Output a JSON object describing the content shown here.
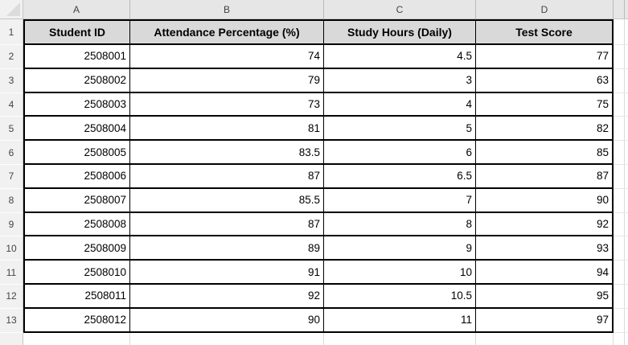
{
  "app": {
    "type": "spreadsheet-grid"
  },
  "grid": {
    "column_headers": [
      "A",
      "B",
      "C",
      "D"
    ],
    "row_numbers": [
      "1",
      "2",
      "3",
      "4",
      "5",
      "6",
      "7",
      "8",
      "9",
      "10",
      "11",
      "12",
      "13"
    ]
  },
  "table": {
    "headers": [
      "Student ID",
      "Attendance Percentage (%)",
      "Study Hours (Daily)",
      "Test Score"
    ],
    "rows": [
      [
        "2508001",
        "74",
        "4.5",
        "77"
      ],
      [
        "2508002",
        "79",
        "3",
        "63"
      ],
      [
        "2508003",
        "73",
        "4",
        "75"
      ],
      [
        "2508004",
        "81",
        "5",
        "82"
      ],
      [
        "2508005",
        "83.5",
        "6",
        "85"
      ],
      [
        "2508006",
        "87",
        "6.5",
        "87"
      ],
      [
        "2508007",
        "85.5",
        "7",
        "90"
      ],
      [
        "2508008",
        "87",
        "8",
        "92"
      ],
      [
        "2508009",
        "89",
        "9",
        "93"
      ],
      [
        "2508010",
        "91",
        "10",
        "94"
      ],
      [
        "2508011",
        "92",
        "10.5",
        "95"
      ],
      [
        "2508012",
        "90",
        "11",
        "97"
      ]
    ]
  },
  "colors": {
    "header_row_fill": "#D9D9D9",
    "table_border": "#000000",
    "strip_background": "#E6E6E6",
    "strip_text": "#444444",
    "gutter_background": "#F1F1F1",
    "faint_gridline": "#DADADA",
    "cell_background": "#FFFFFF"
  }
}
